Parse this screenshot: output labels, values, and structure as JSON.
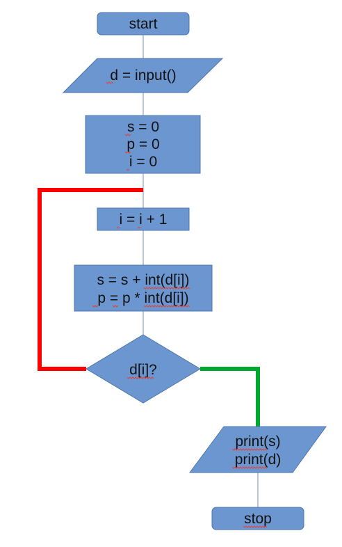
{
  "nodes": {
    "start": {
      "text": "start"
    },
    "input": {
      "text": "d = input()"
    },
    "init": {
      "lines": [
        "s = 0",
        "p = 0",
        "i = 0"
      ]
    },
    "increment": {
      "text": "i = i + 1"
    },
    "update": {
      "lines": [
        "s = s + int(d[i])",
        "p = p * int(d[i])"
      ]
    },
    "decision": {
      "text": "d[i]?"
    },
    "output": {
      "lines": [
        "print(s)",
        "print(d)"
      ]
    },
    "stop": {
      "text": "stop"
    }
  },
  "colors": {
    "node_fill": "#6c96cf",
    "node_stroke": "#4f76ad",
    "connector": "#8aa4c8",
    "loop_arrow": "#ff0000",
    "exit_arrow": "#00a830",
    "spellcheck_underline": "#e0433b"
  }
}
